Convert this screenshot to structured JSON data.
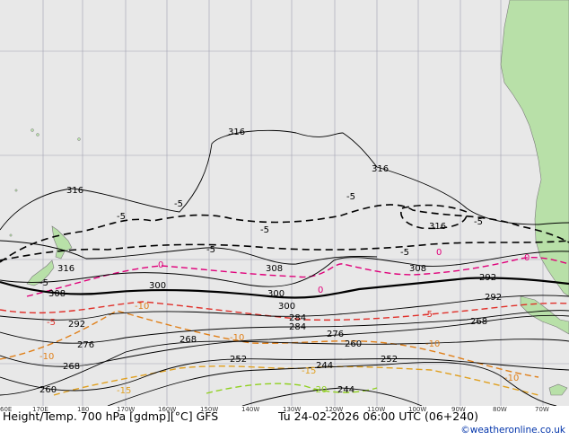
{
  "footer": {
    "title": "Height/Temp. 700 hPa [gdmp][°C] GFS",
    "valid_time": "Tu 24-02-2026 06:00 UTC (06+240)",
    "credit": "©weatheronline.co.uk"
  },
  "longitude_labels": [
    "60E",
    "170E",
    "180",
    "170W",
    "160W",
    "150W",
    "140W",
    "130W",
    "120W",
    "110W",
    "100W",
    "90W",
    "80W",
    "70W"
  ],
  "height_labels": [
    "316",
    "316",
    "316",
    "316",
    "316",
    "308",
    "308",
    "308",
    "300",
    "300",
    "300",
    "292",
    "292",
    "292",
    "284",
    "284",
    "276",
    "276",
    "268",
    "268",
    "268",
    "260",
    "260",
    "252",
    "252",
    "244"
  ],
  "temp_labels": [
    "-5",
    "-5",
    "-5",
    "-5",
    "-5",
    "-5",
    "-5",
    "-5",
    "0",
    "0",
    "0",
    "0",
    "-5",
    "-10",
    "-10",
    "-10",
    "-15",
    "-15",
    "-10",
    "-5",
    "-20",
    "-10"
  ],
  "colors": {
    "sea": "#e8e8e8",
    "land": "#b8e0a8",
    "height_contour": "#000000",
    "temp_0": "#e0007a",
    "temp_minus5": "#e0302a",
    "temp_minus10": "#e0801a",
    "temp_minus15": "#e0a020",
    "temp_minus20": "#90d020",
    "grid": "#a0a0b0"
  }
}
